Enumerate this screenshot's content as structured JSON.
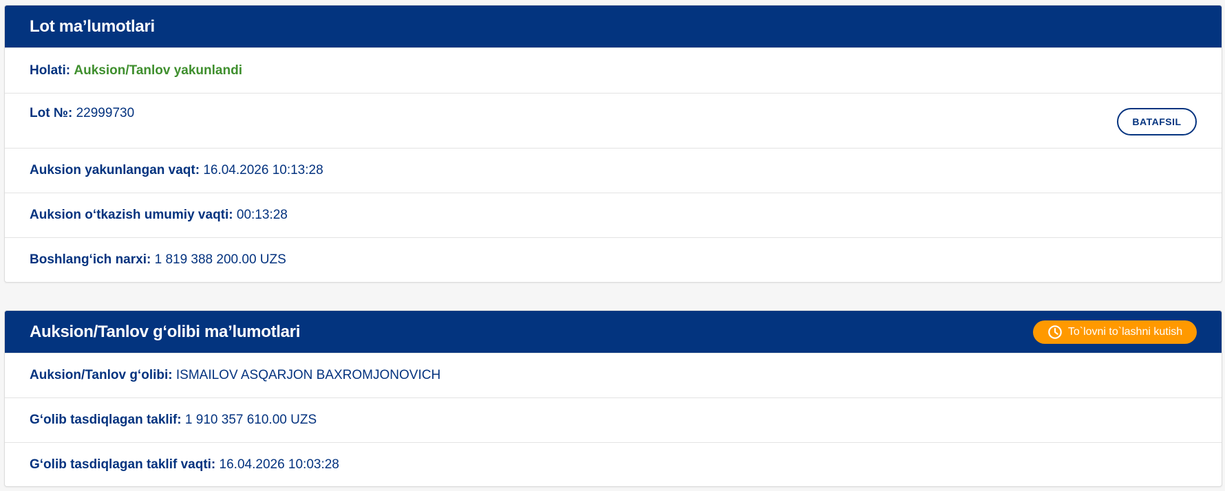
{
  "lot_card": {
    "title": "Lot ma’lumotlari",
    "status": {
      "label": "Holati:",
      "value": "Auksion/Tanlov yakunlandi",
      "color": "#3f8f2e"
    },
    "lot_number": {
      "label": "Lot №:",
      "value": "22999730"
    },
    "details_button": "BATAFSIL",
    "end_time": {
      "label": "Auksion yakunlangan vaqt:",
      "value": "16.04.2026 10:13:28"
    },
    "duration": {
      "label": "Auksion o‘tkazish umumiy vaqti:",
      "value": "00:13:28"
    },
    "start_price": {
      "label": "Boshlang‘ich narxi:",
      "value": "1 819 388 200.00 UZS"
    }
  },
  "winner_card": {
    "title": "Auksion/Tanlov g‘olibi ma’lumotlari",
    "badge": {
      "label": "To`lovni to`lashni kutish",
      "icon": "clock-icon",
      "color": "#ff9900"
    },
    "winner": {
      "label": "Auksion/Tanlov g‘olibi:",
      "value": "ISMAILOV ASQARJON BAXROMJONOVICH"
    },
    "offer": {
      "label": "G‘olib tasdiqlagan taklif:",
      "value": "1 910 357 610.00 UZS"
    },
    "offer_time": {
      "label": "G‘olib tasdiqlagan taklif vaqti:",
      "value": "16.04.2026 10:03:28"
    }
  },
  "colors": {
    "header": "#03347f",
    "text": "#04337f"
  }
}
